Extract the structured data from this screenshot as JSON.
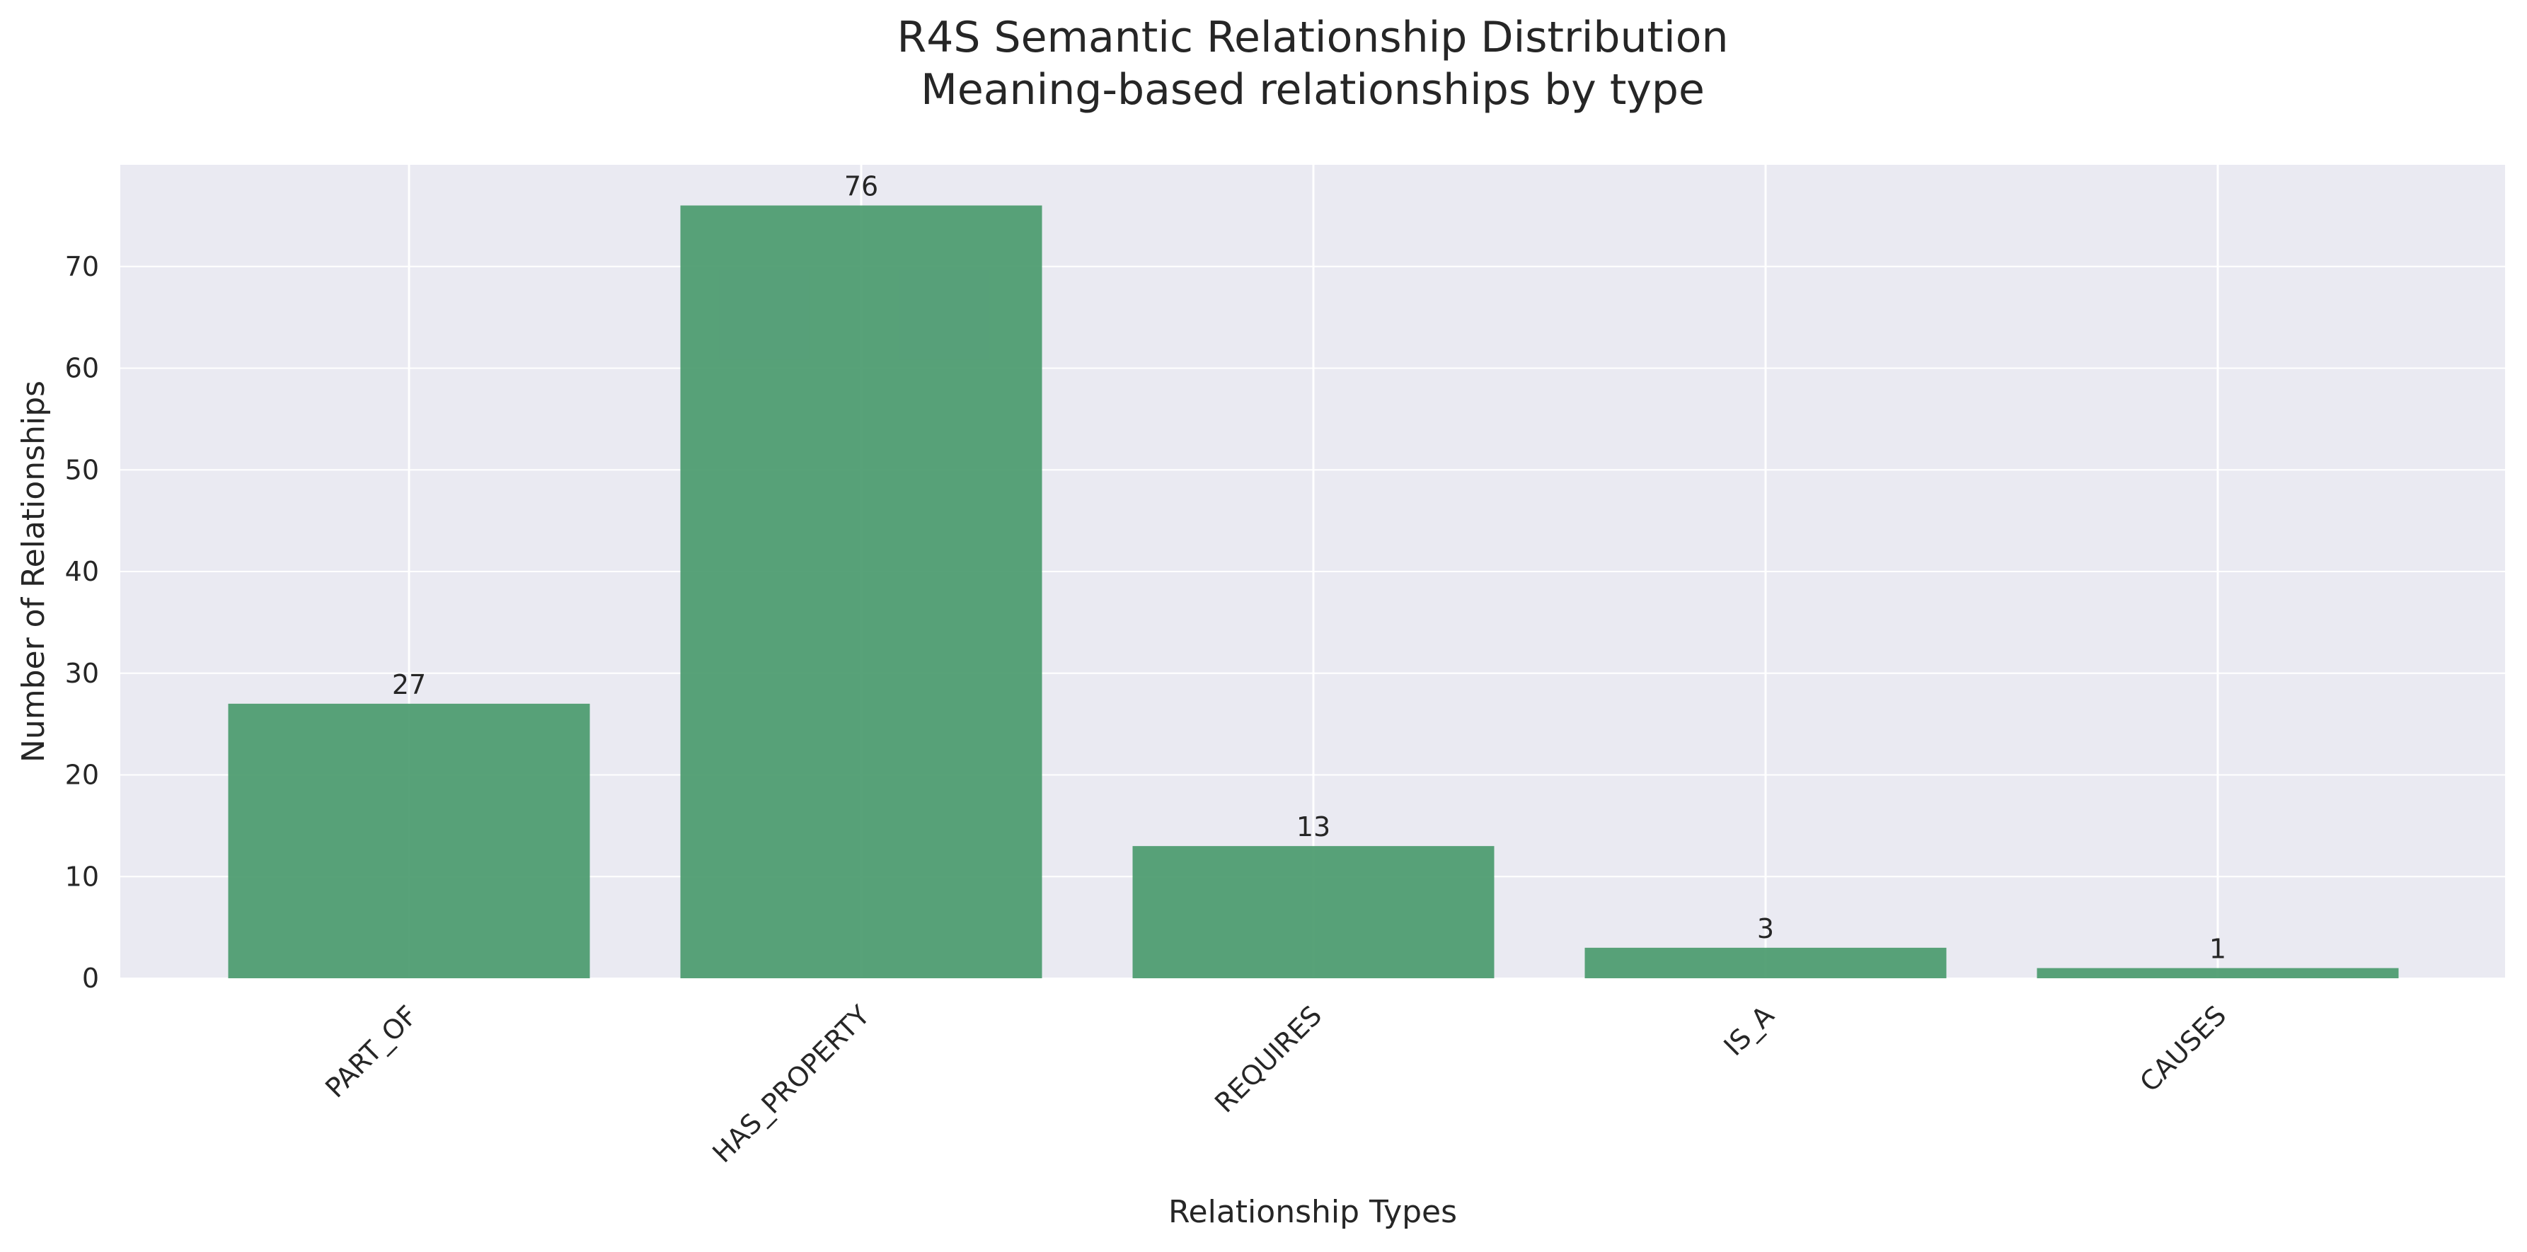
{
  "chart_data": {
    "type": "bar",
    "title": "R4S Semantic Relationship Distribution",
    "subtitle": "Meaning-based relationships by type",
    "xlabel": "Relationship Types",
    "ylabel": "Number of Relationships",
    "categories": [
      "PART_OF",
      "HAS_PROPERTY",
      "REQUIRES",
      "IS_A",
      "CAUSES"
    ],
    "values": [
      27,
      76,
      13,
      3,
      1
    ],
    "data_labels": [
      "27",
      "76",
      "13",
      "3",
      "1"
    ],
    "ylim": [
      0,
      80
    ],
    "yticks": [
      0,
      10,
      20,
      30,
      40,
      50,
      60,
      70
    ],
    "ytick_labels": [
      "0",
      "10",
      "20",
      "30",
      "40",
      "50",
      "60",
      "70"
    ],
    "grid": true,
    "x_tick_rotation": -45,
    "colors": {
      "bar": "#4a9a6e",
      "plot_background": "#eaeaf2",
      "grid": "#ffffff"
    }
  }
}
